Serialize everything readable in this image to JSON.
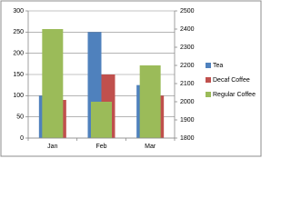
{
  "chart_data": {
    "type": "bar",
    "categories": [
      "Jan",
      "Feb",
      "Mar"
    ],
    "series": [
      {
        "name": "Tea",
        "color": "#4f81bd",
        "values": [
          100,
          250,
          125
        ]
      },
      {
        "name": "Decaf Coffee",
        "color": "#c0504d",
        "values": [
          90,
          150,
          100
        ]
      },
      {
        "name": "Regular Coffee",
        "color": "#9bbb59",
        "values": [
          2400,
          2000,
          2200
        ],
        "axis": "y2"
      }
    ],
    "ylim": [
      0,
      300
    ],
    "yticks": [
      0,
      50,
      100,
      150,
      200,
      250,
      300
    ],
    "y2lim": [
      1800,
      2500
    ],
    "y2ticks": [
      1800,
      1900,
      2000,
      2100,
      2200,
      2300,
      2400,
      2500
    ],
    "grid": true,
    "legend": "right"
  }
}
